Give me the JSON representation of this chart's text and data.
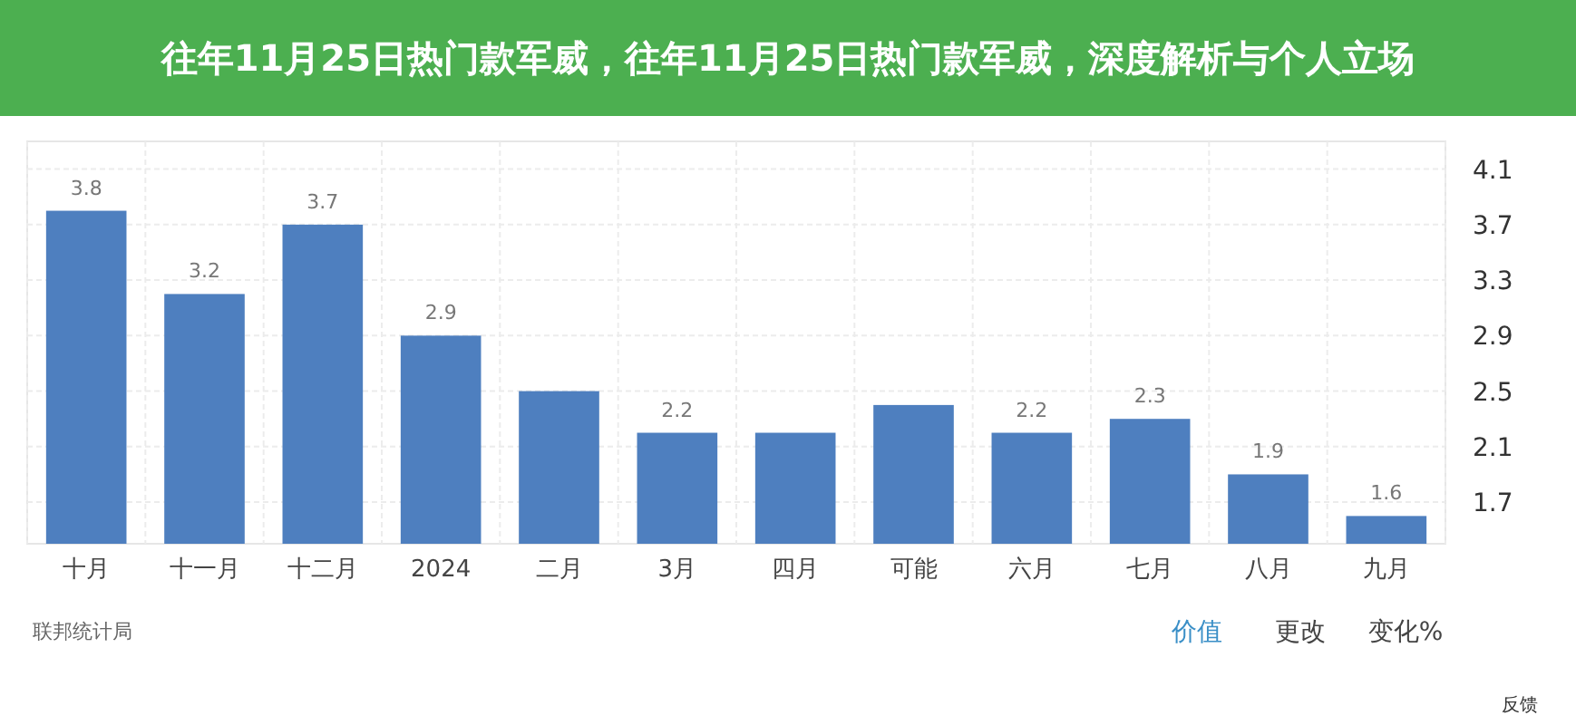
{
  "chart_data": {
    "type": "bar",
    "title": "往年11月25日热门款军威，往年11月25日热门款军威，深度解析与个人立场",
    "categories": [
      "十月",
      "十一月",
      "十二月",
      "2024",
      "二月",
      "3月",
      "四月",
      "可能",
      "六月",
      "七月",
      "八月",
      "九月"
    ],
    "values": [
      3.8,
      3.2,
      3.7,
      2.9,
      2.5,
      2.2,
      2.2,
      2.4,
      2.2,
      2.3,
      1.9,
      1.6
    ],
    "value_labels": [
      "3.8",
      "3.2",
      "3.7",
      "2.9",
      null,
      "2.2",
      null,
      null,
      "2.2",
      "2.3",
      "1.9",
      "1.6"
    ],
    "color": "#4e7fbf",
    "ylim": [
      1.4,
      4.3
    ],
    "yticks": [
      1.7,
      2.1,
      2.5,
      2.9,
      3.3,
      3.7,
      4.1
    ],
    "grid": true,
    "annotations": [
      "联邦统计局",
      "价值",
      "更改",
      "变化%",
      "反馈"
    ]
  }
}
